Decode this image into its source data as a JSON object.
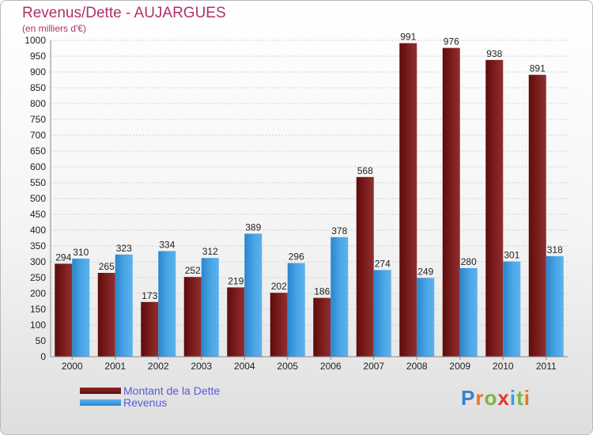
{
  "header": {
    "title": "Revenus/Dette - AUJARGUES",
    "subtitle": "(en milliers d'€)"
  },
  "colors": {
    "title": "#b0306a",
    "debt": "#7a1a1a",
    "revenue": "#3a98dc",
    "legend_text": "#5a5adc"
  },
  "logo": {
    "text": "Proxiti",
    "letters": [
      "P",
      "r",
      "o",
      "x",
      "i",
      "t",
      "i"
    ]
  },
  "chart_data": {
    "type": "bar",
    "categories": [
      "2000",
      "2001",
      "2002",
      "2003",
      "2004",
      "2005",
      "2006",
      "2007",
      "2008",
      "2009",
      "2010",
      "2011"
    ],
    "series": [
      {
        "name": "Montant de la Dette",
        "values": [
          294,
          265,
          173,
          252,
          219,
          202,
          186,
          568,
          991,
          976,
          938,
          891
        ]
      },
      {
        "name": "Revenus",
        "values": [
          310,
          323,
          334,
          312,
          389,
          296,
          378,
          274,
          249,
          280,
          301,
          318
        ]
      }
    ],
    "ylim": [
      0,
      1000
    ],
    "ytick_step": 50,
    "grid": true,
    "legend": "bottom-left"
  }
}
